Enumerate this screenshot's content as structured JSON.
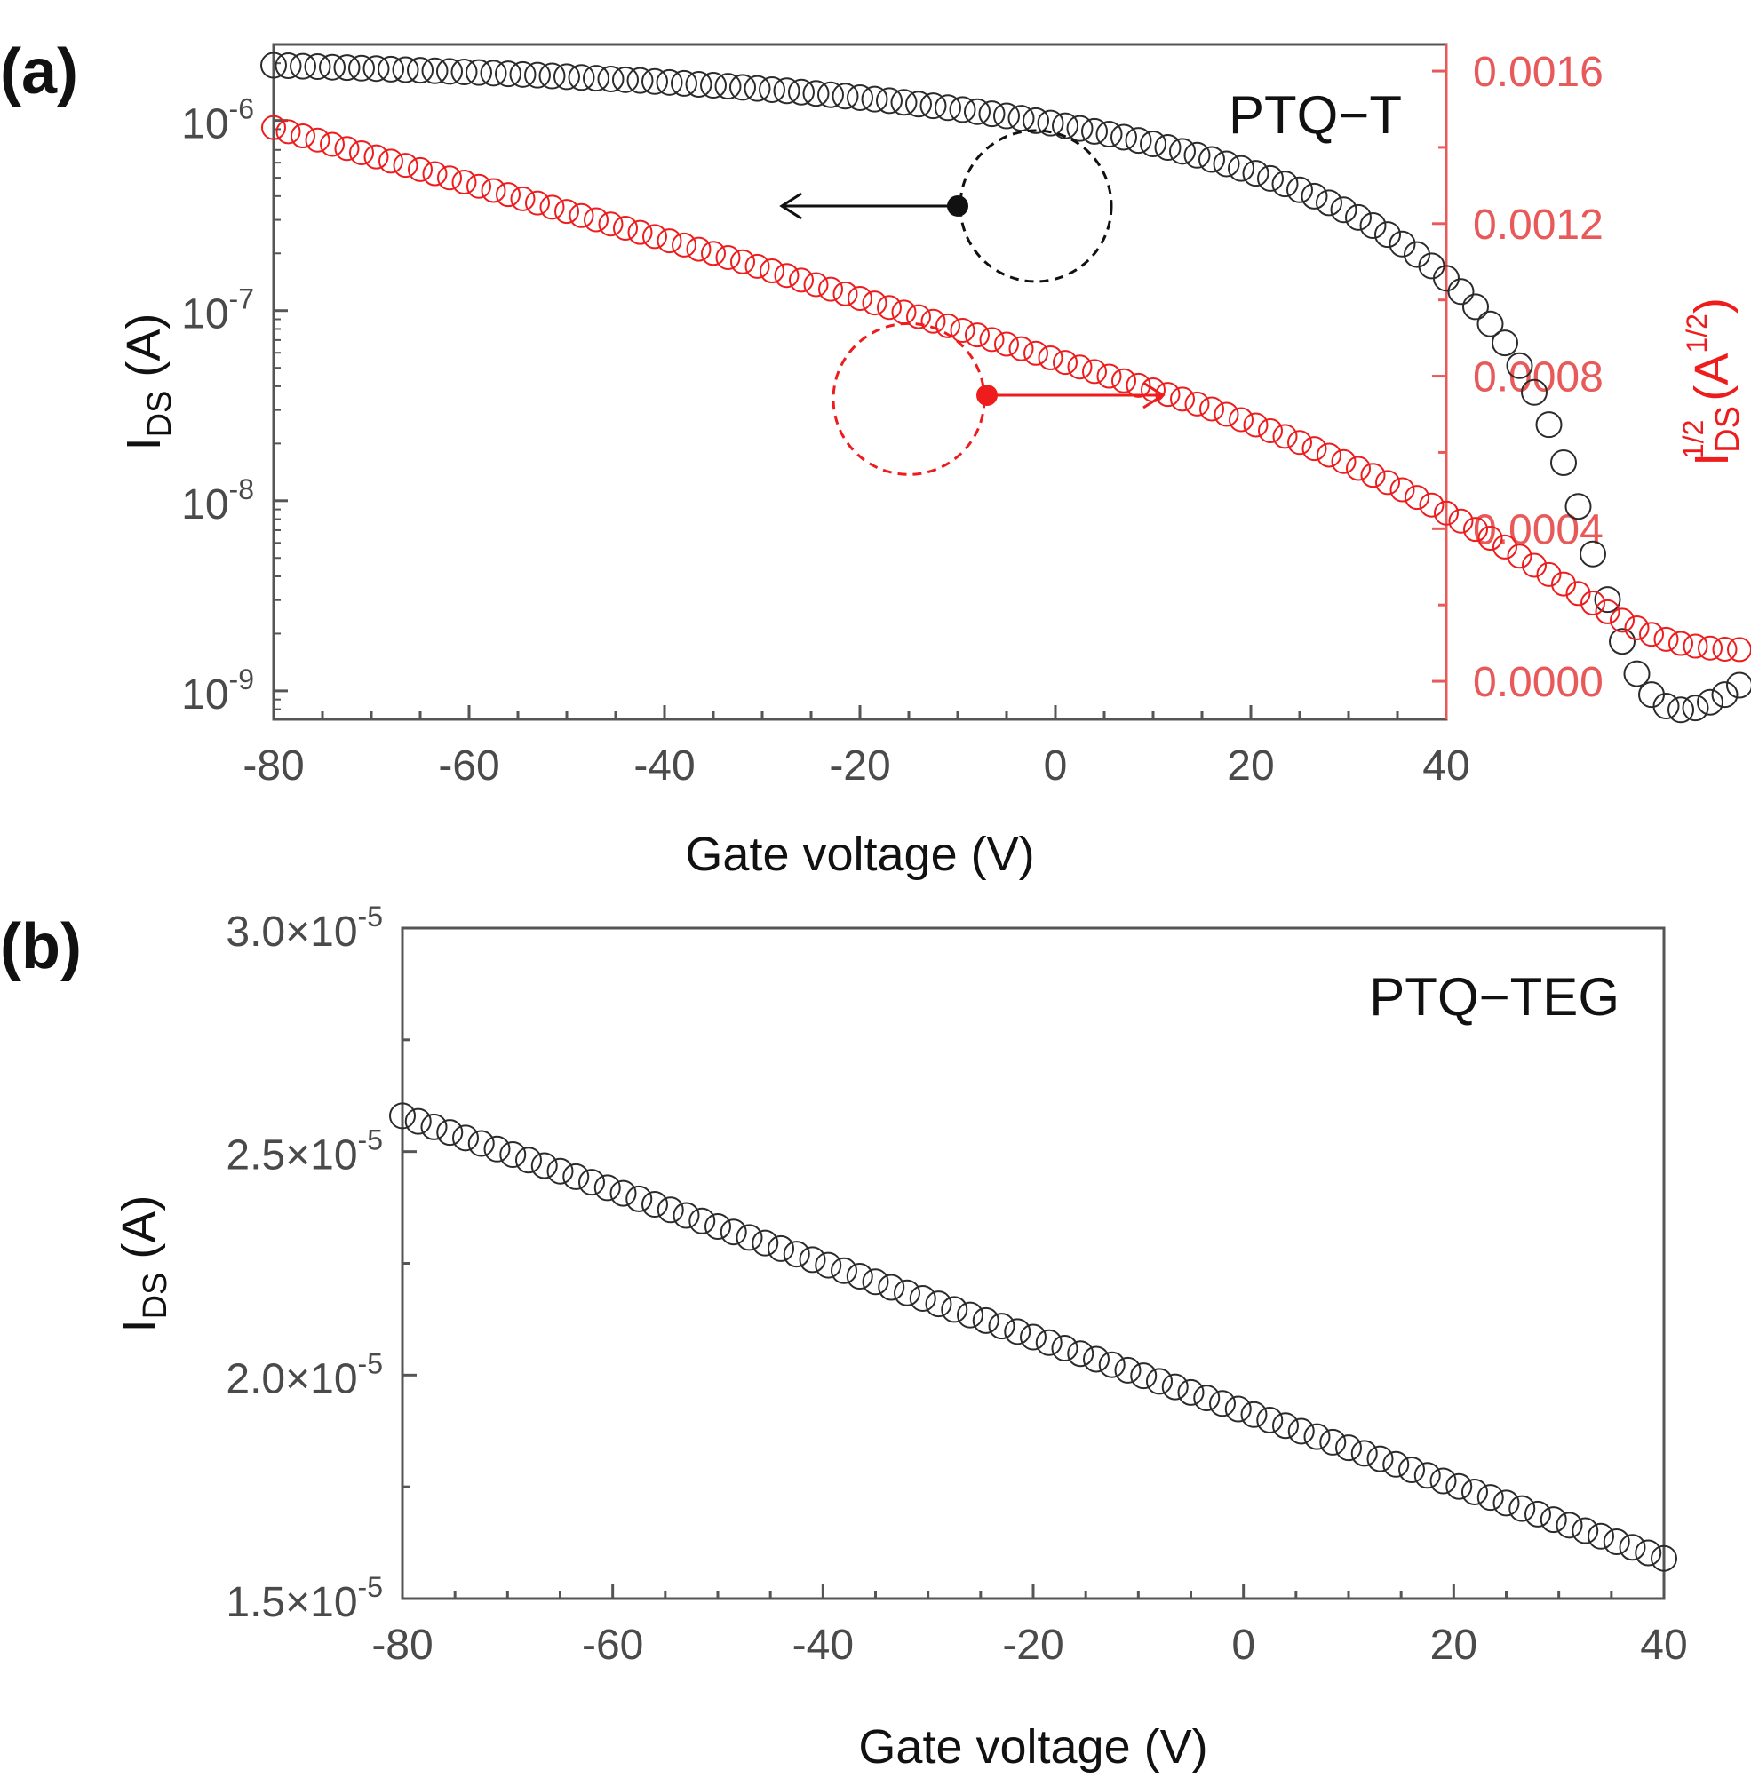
{
  "chart_data": [
    {
      "panel": "(a)",
      "type": "scatter",
      "annotation": "PTQ−T",
      "xlabel": "Gate voltage (V)",
      "xlim": [
        -80,
        40
      ],
      "xticks": [
        "-80",
        "-60",
        "-40",
        "-20",
        "0",
        "20",
        "40"
      ],
      "ylabel_left": {
        "main": "I",
        "sub": "DS",
        "rest": " (A)"
      },
      "ylim_left_log10": [
        -9.15,
        -5.6
      ],
      "yscale_left": "log",
      "yticks_left": [
        {
          "base": "10",
          "exp": "-6",
          "value": 1e-06
        },
        {
          "base": "10",
          "exp": "-7",
          "value": 1e-07
        },
        {
          "base": "10",
          "exp": "-8",
          "value": 1e-08
        },
        {
          "base": "10",
          "exp": "-9",
          "value": 1e-09
        }
      ],
      "ylabel_right": {
        "main": "I",
        "sub": "DS",
        "sup": "1/2",
        "rest1": " (A",
        "sup2": "1/2",
        "rest2": ")"
      },
      "ylim_right": [
        -0.0001,
        0.00167
      ],
      "yticks_right": [
        "0.0016",
        "0.0012",
        "0.0008",
        "0.0004",
        "0.0000"
      ],
      "x_start": -80,
      "x_step": 1.5,
      "series": [
        {
          "name": "IDS (log, left axis)",
          "color": "#2b2b2b",
          "axis": "left",
          "marker": "open-circle",
          "values_log10": [
            -5.71,
            -5.712,
            -5.715,
            -5.717,
            -5.72,
            -5.722,
            -5.725,
            -5.727,
            -5.73,
            -5.733,
            -5.736,
            -5.739,
            -5.742,
            -5.745,
            -5.748,
            -5.751,
            -5.755,
            -5.758,
            -5.762,
            -5.766,
            -5.77,
            -5.774,
            -5.778,
            -5.782,
            -5.786,
            -5.79,
            -5.795,
            -5.8,
            -5.805,
            -5.81,
            -5.815,
            -5.82,
            -5.826,
            -5.832,
            -5.838,
            -5.844,
            -5.851,
            -5.858,
            -5.865,
            -5.872,
            -5.88,
            -5.888,
            -5.896,
            -5.905,
            -5.914,
            -5.923,
            -5.933,
            -5.943,
            -5.954,
            -5.965,
            -5.976,
            -5.988,
            -6.001,
            -6.014,
            -6.028,
            -6.042,
            -6.057,
            -6.072,
            -6.088,
            -6.105,
            -6.123,
            -6.142,
            -6.162,
            -6.183,
            -6.205,
            -6.228,
            -6.252,
            -6.278,
            -6.305,
            -6.334,
            -6.365,
            -6.398,
            -6.433,
            -6.47,
            -6.51,
            -6.553,
            -6.6,
            -6.65,
            -6.705,
            -6.765,
            -6.83,
            -6.9,
            -6.98,
            -7.07,
            -7.17,
            -7.29,
            -7.43,
            -7.6,
            -7.8,
            -8.03,
            -8.28,
            -8.52,
            -8.74,
            -8.91,
            -9.02,
            -9.08,
            -9.1,
            -9.09,
            -9.06,
            -9.02,
            -8.97
          ]
        },
        {
          "name": "IDS^1/2 (linear, right axis)",
          "color": "#ee1c1c",
          "axis": "right",
          "marker": "open-circle",
          "values": [
            0.001452,
            0.001441,
            0.00143,
            0.001419,
            0.001408,
            0.001397,
            0.001386,
            0.001375,
            0.001364,
            0.001353,
            0.001342,
            0.001331,
            0.00132,
            0.001309,
            0.001298,
            0.001287,
            0.001276,
            0.001265,
            0.001254,
            0.001243,
            0.001232,
            0.001221,
            0.00121,
            0.001199,
            0.001188,
            0.001177,
            0.001166,
            0.001155,
            0.001144,
            0.001133,
            0.001122,
            0.001111,
            0.0011,
            0.001088,
            0.001076,
            0.001064,
            0.001052,
            0.00104,
            0.001028,
            0.001016,
            0.001004,
            0.000992,
            0.00098,
            0.000968,
            0.000956,
            0.000944,
            0.000932,
            0.00092,
            0.000908,
            0.000896,
            0.000884,
            0.000872,
            0.00086,
            0.000848,
            0.000836,
            0.000824,
            0.000812,
            0.0008,
            0.000788,
            0.000776,
            0.000764,
            0.000752,
            0.00074,
            0.000727,
            0.000714,
            0.0007,
            0.000686,
            0.000672,
            0.000657,
            0.000642,
            0.000626,
            0.00061,
            0.000593,
            0.000576,
            0.000558,
            0.00054,
            0.000521,
            0.000502,
            0.000482,
            0.000462,
            0.000441,
            0.00042,
            0.000398,
            0.000375,
            0.000352,
            0.000328,
            0.000304,
            0.00028,
            0.000255,
            0.00023,
            0.000205,
            0.000182,
            0.00016,
            0.00014,
            0.000123,
            0.00011,
            9.9e-05,
            9.2e-05,
            8.7e-05,
            8.4e-05,
            8.3e-05
          ]
        }
      ],
      "markers": [
        {
          "x": -10,
          "y_log10": -6.45,
          "circle_center_x": -2,
          "circle_center_y_log10": -6.45,
          "arrow_to_x": -28,
          "color": "#111111"
        },
        {
          "x": -7,
          "y_right": 0.00075,
          "circle_center_x": -15,
          "circle_center_y_right": 0.00074,
          "arrow_to_x": 11,
          "color": "#ee1c1c"
        }
      ]
    },
    {
      "panel": "(b)",
      "type": "scatter",
      "annotation": "PTQ−TEG",
      "xlabel": "Gate voltage (V)",
      "xlim": [
        -80,
        40
      ],
      "xticks": [
        "-80",
        "-60",
        "-40",
        "-20",
        "0",
        "20",
        "40"
      ],
      "ylabel": {
        "main": "I",
        "sub": "DS",
        "rest": " (A)"
      },
      "ylim": [
        1.5e-05,
        3e-05
      ],
      "yticks": [
        {
          "mant": "3.0×10",
          "exp": "-5",
          "value": 3e-05
        },
        {
          "mant": "2.5×10",
          "exp": "-5",
          "value": 2.5e-05
        },
        {
          "mant": "2.0×10",
          "exp": "-5",
          "value": 2e-05
        },
        {
          "mant": "1.5×10",
          "exp": "-5",
          "value": 1.5e-05
        }
      ],
      "series": [
        {
          "name": "IDS",
          "color": "#2b2b2b",
          "marker": "open-circle",
          "x_start": -80,
          "x_step": 1.5,
          "count": 81,
          "y_start": 2.58e-05,
          "y_end": 1.59e-05
        }
      ]
    }
  ]
}
